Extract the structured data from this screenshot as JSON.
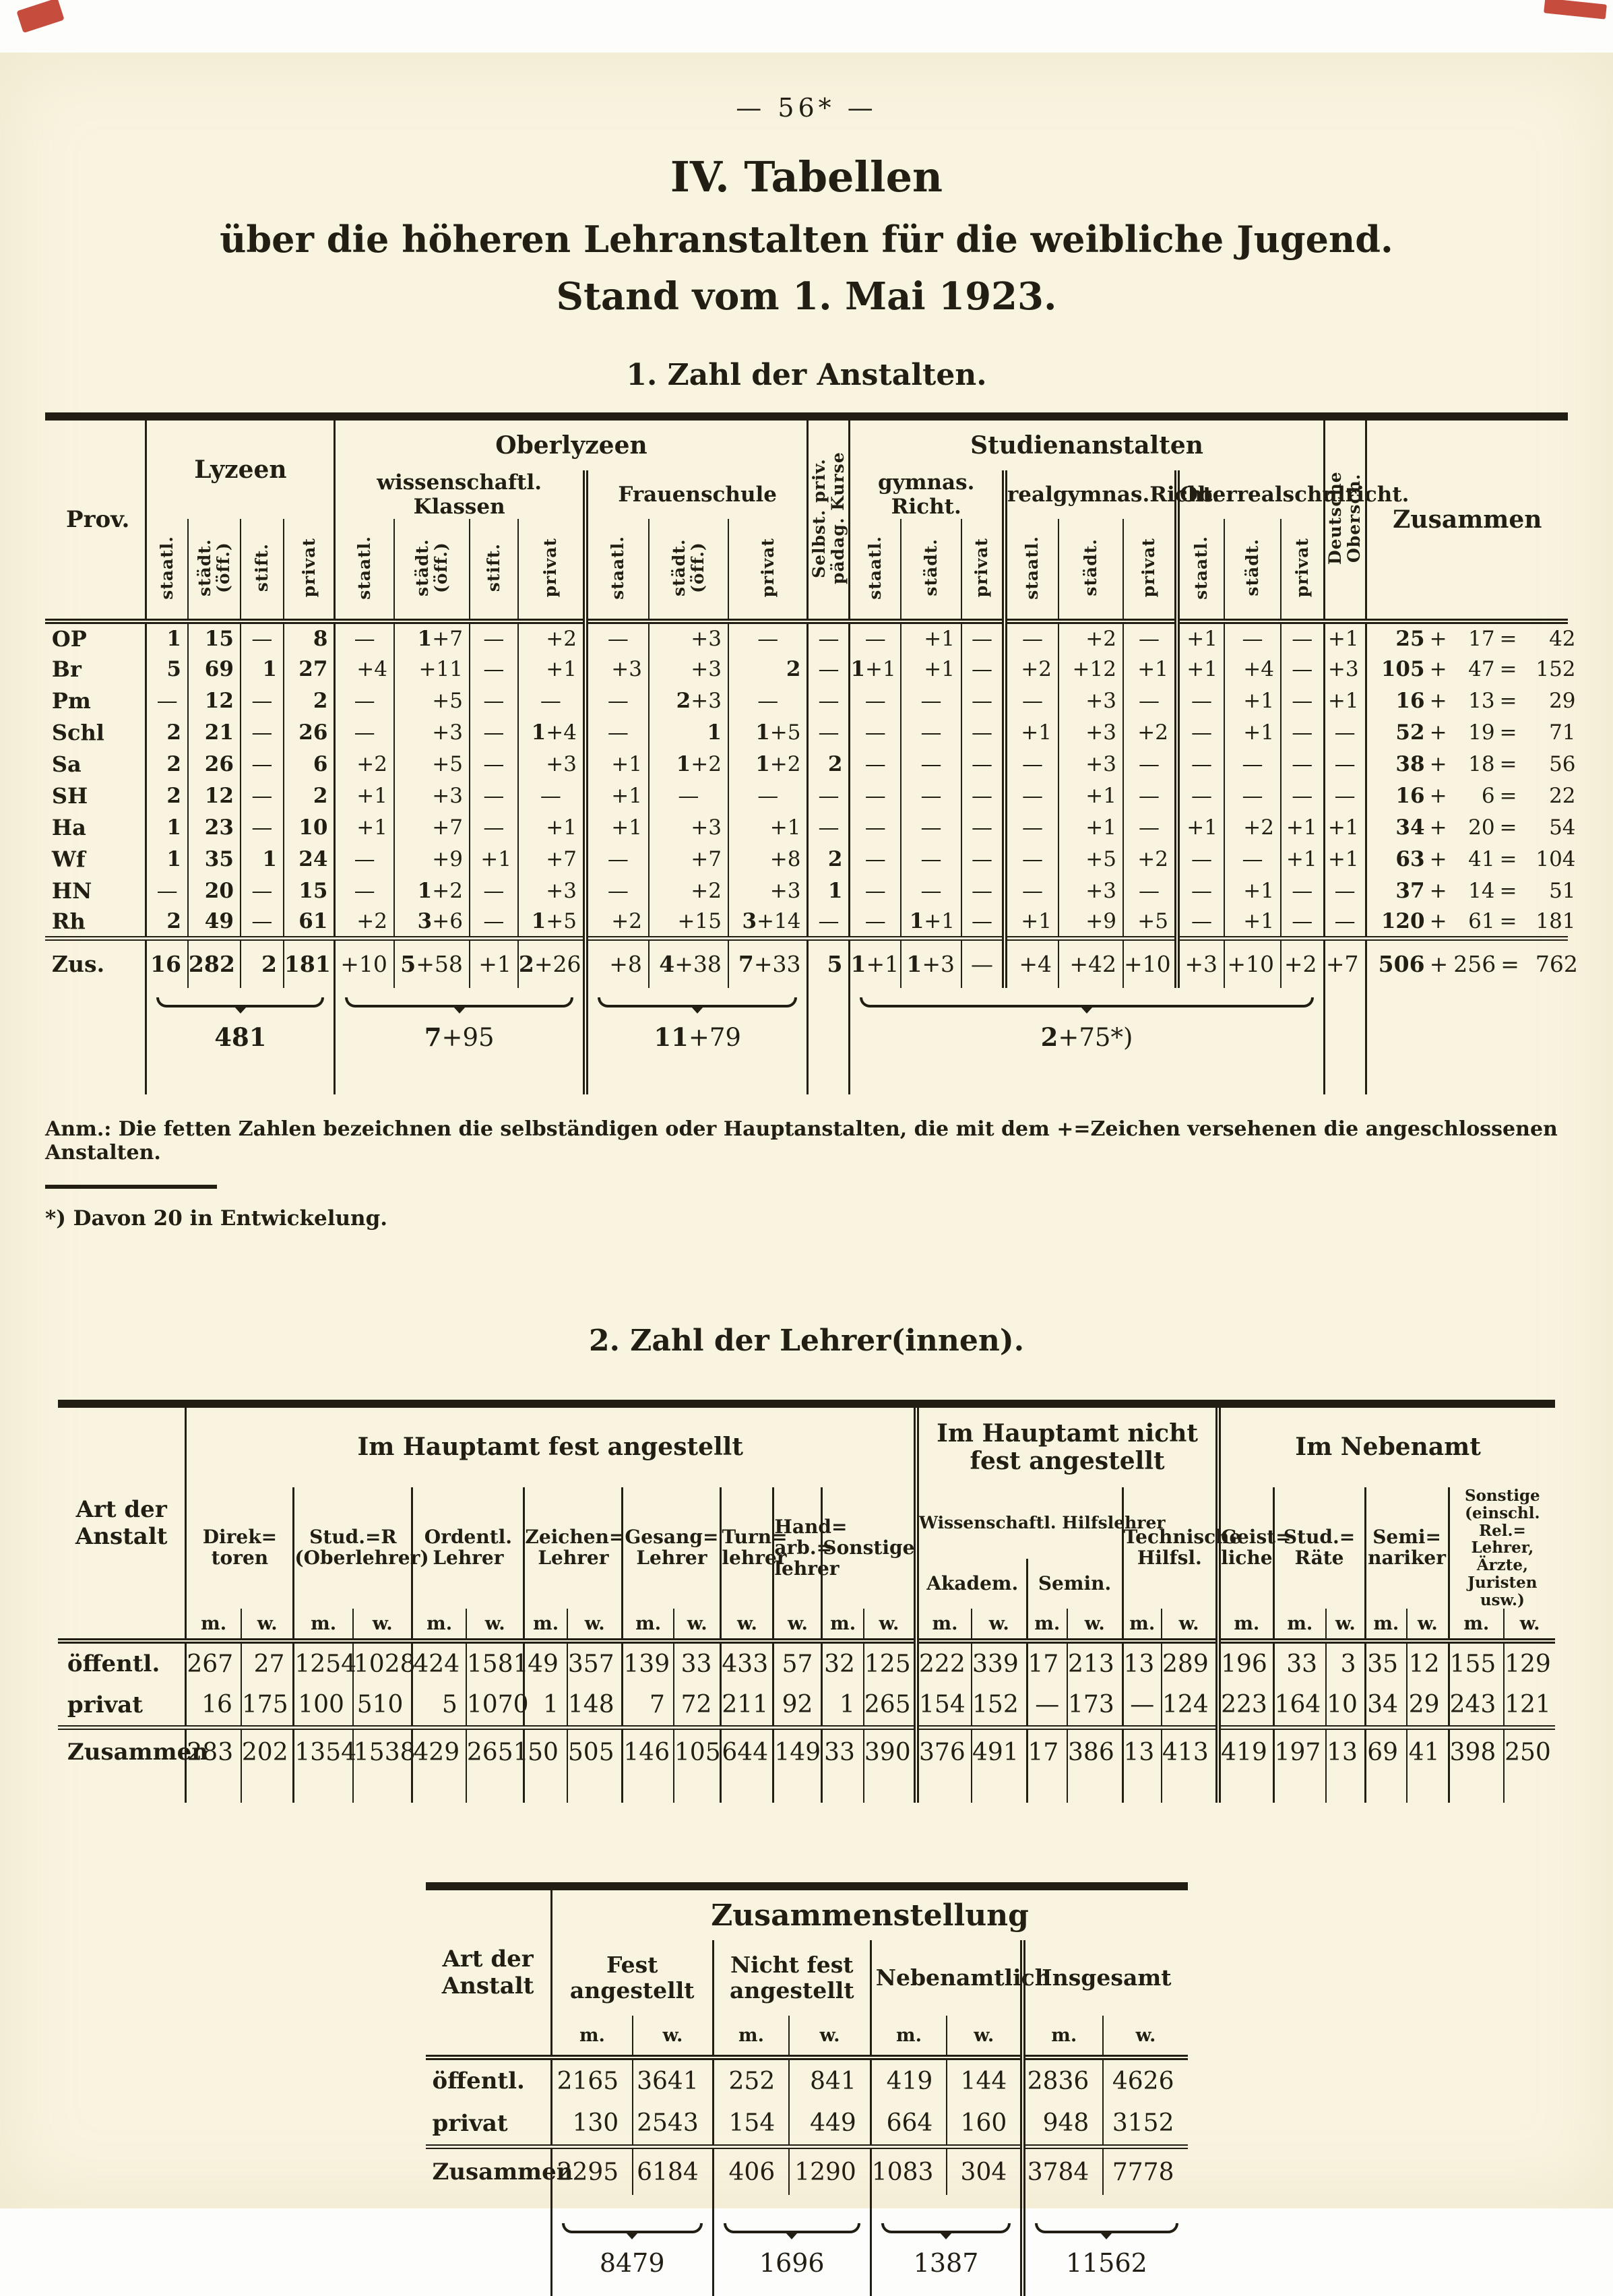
{
  "page": {
    "page_number": "—  56*  —",
    "title": "IV. Tabellen",
    "subtitle": "über die höheren Lehranstalten für die weibliche Jugend.",
    "date_line": "Stand vom 1. Mai 1923."
  },
  "table1": {
    "section_title": "1. Zahl der Anstalten.",
    "header": {
      "prov": "Prov.",
      "lyzeen": "Lyzeen",
      "oberlyzeen": "Oberlyzeen",
      "wiss_klassen": "wissenschaftl. Klassen",
      "frauenschule": "Frauenschule",
      "kurse": "Selbst. priv. pädag. Kurse",
      "studienanstalten": "Studienanstalten",
      "gym": "gymnas. Richt.",
      "realgym": "realgymnas.Richt.",
      "oberreal": "Oberrealschulricht.",
      "deutsche_obersch": "Deutsche Obersch.",
      "zusammen": "Zusammen",
      "cols": [
        "staatl.",
        "städt. (öff.)",
        "stift.",
        "privat",
        "staatl.",
        "städt. (öff.)",
        "stift.",
        "privat",
        "staatl.",
        "städt. (öff.)",
        "privat",
        "staatl.",
        "städt.",
        "privat",
        "staatl.",
        "städt.",
        "privat",
        "staatl.",
        "städt.",
        "privat"
      ]
    },
    "rows": [
      {
        "prov": "OP",
        "cells": [
          "1",
          "15",
          "—",
          "8",
          "—",
          "1+7",
          "—",
          "+2",
          "—",
          "+3",
          "—",
          "—",
          "—",
          "+1",
          "—",
          "—",
          "+2",
          "—",
          "+1",
          "—",
          "—",
          "+1"
        ],
        "zus": [
          "25",
          "17",
          "42"
        ]
      },
      {
        "prov": "Br",
        "cells": [
          "5",
          "69",
          "1",
          "27",
          "+4",
          "+11",
          "—",
          "+1",
          "+3",
          "+3",
          "2",
          "—",
          "1+1",
          "+1",
          "—",
          "+2",
          "+12",
          "+1",
          "+1",
          "+4",
          "—",
          "+3"
        ],
        "zus": [
          "105",
          "47",
          "152"
        ]
      },
      {
        "prov": "Pm",
        "cells": [
          "—",
          "12",
          "—",
          "2",
          "—",
          "+5",
          "—",
          "—",
          "—",
          "2+3",
          "—",
          "—",
          "—",
          "—",
          "—",
          "—",
          "+3",
          "—",
          "—",
          "+1",
          "—",
          "+1"
        ],
        "zus": [
          "16",
          "13",
          "29"
        ]
      },
      {
        "prov": "Schl",
        "cells": [
          "2",
          "21",
          "—",
          "26",
          "—",
          "+3",
          "—",
          "1+4",
          "—",
          "1",
          "1+5",
          "—",
          "—",
          "—",
          "—",
          "+1",
          "+3",
          "+2",
          "—",
          "+1",
          "—",
          "—"
        ],
        "zus": [
          "52",
          "19",
          "71"
        ]
      },
      {
        "prov": "Sa",
        "cells": [
          "2",
          "26",
          "—",
          "6",
          "+2",
          "+5",
          "—",
          "+3",
          "+1",
          "1+2",
          "1+2",
          "2",
          "—",
          "—",
          "—",
          "—",
          "+3",
          "—",
          "—",
          "—",
          "—",
          "—"
        ],
        "zus": [
          "38",
          "18",
          "56"
        ]
      },
      {
        "prov": "SH",
        "cells": [
          "2",
          "12",
          "—",
          "2",
          "+1",
          "+3",
          "—",
          "—",
          "+1",
          "—",
          "—",
          "—",
          "—",
          "—",
          "—",
          "—",
          "+1",
          "—",
          "—",
          "—",
          "—",
          "—"
        ],
        "zus": [
          "16",
          "6",
          "22"
        ]
      },
      {
        "prov": "Ha",
        "cells": [
          "1",
          "23",
          "—",
          "10",
          "+1",
          "+7",
          "—",
          "+1",
          "+1",
          "+3",
          "+1",
          "—",
          "—",
          "—",
          "—",
          "—",
          "+1",
          "—",
          "+1",
          "+2",
          "+1",
          "+1"
        ],
        "zus": [
          "34",
          "20",
          "54"
        ]
      },
      {
        "prov": "Wf",
        "cells": [
          "1",
          "35",
          "1",
          "24",
          "—",
          "+9",
          "+1",
          "+7",
          "—",
          "+7",
          "+8",
          "2",
          "—",
          "—",
          "—",
          "—",
          "+5",
          "+2",
          "—",
          "—",
          "+1",
          "+1"
        ],
        "zus": [
          "63",
          "41",
          "104"
        ]
      },
      {
        "prov": "HN",
        "cells": [
          "—",
          "20",
          "—",
          "15",
          "—",
          "1+2",
          "—",
          "+3",
          "—",
          "+2",
          "+3",
          "1",
          "—",
          "—",
          "—",
          "—",
          "+3",
          "—",
          "—",
          "+1",
          "—",
          "—"
        ],
        "zus": [
          "37",
          "14",
          "51"
        ]
      },
      {
        "prov": "Rh",
        "cells": [
          "2",
          "49",
          "—",
          "61",
          "+2",
          "3+6",
          "—",
          "1+5",
          "+2",
          "+15",
          "3+14",
          "—",
          "—",
          "1+1",
          "—",
          "+1",
          "+9",
          "+5",
          "—",
          "+1",
          "—",
          "—"
        ],
        "zus": [
          "120",
          "61",
          "181"
        ]
      }
    ],
    "total": {
      "prov": "Zus.",
      "cells": [
        "16",
        "282",
        "2",
        "181",
        "+10",
        "5+58",
        "+1",
        "2+26",
        "+8",
        "4+38",
        "7+33",
        "5",
        "1+1",
        "1+3",
        "—",
        "+4",
        "+42",
        "+10",
        "+3",
        "+10",
        "+2",
        "+7"
      ],
      "zus": [
        "506",
        "256",
        "762"
      ]
    },
    "braces": {
      "lyzeen": "481",
      "wiss": "7+95",
      "frauenschule": "11+79",
      "studien": "2+75*)"
    },
    "note": "Anm.: Die fetten Zahlen bezeichnen die selbständigen oder Hauptanstalten, die mit dem +=Zeichen versehenen die angeschlossenen Anstalten.",
    "footnote": "*) Davon 20 in Entwickelung."
  },
  "table2": {
    "section_title": "2. Zahl der Lehrer(innen).",
    "header": {
      "art": "Art der Anstalt",
      "hauptamt_fest": "Im Hauptamt fest angestellt",
      "hauptamt_nicht": "Im Hauptamt nicht fest angestellt",
      "nebenamt": "Im Nebenamt",
      "direktoren": "Direk= toren",
      "stud_r": "Stud.=R (Oberlehrer)",
      "ordentl": "Ordentl. Lehrer",
      "zeichen": "Zeichen= Lehrer",
      "gesang": "Gesang= Lehrer",
      "turn": "Turn= lehrer",
      "handarb": "Hand= arb.= lehrer",
      "sonstige": "Sonstige",
      "wiss_hilfslehrer": "Wissenschaftl. Hilfslehrer",
      "akadem": "Akadem.",
      "semin": "Semin.",
      "technische": "Technische Hilfsl.",
      "geistliche": "Geist= liche",
      "stud_raete": "Stud.= Räte",
      "seminariker": "Semi= nariker",
      "sonstige2": "Sonstige (einschl. Rel.= Lehrer, Ärzte, Juristen usw.)",
      "mw": [
        "m.",
        "w.",
        "m.",
        "w.",
        "m.",
        "w.",
        "m.",
        "w.",
        "m.",
        "w.",
        "w.",
        "w.",
        "m.",
        "w.",
        "m.",
        "w.",
        "m.",
        "w.",
        "m.",
        "w.",
        "m.",
        "m.",
        "w.",
        "m.",
        "w.",
        "m.",
        "w."
      ]
    },
    "rows": [
      {
        "label": "öffentl.",
        "values": [
          "267",
          "27",
          "1254",
          "1028",
          "424",
          "1581",
          "49",
          "357",
          "139",
          "33",
          "433",
          "57",
          "32",
          "125",
          "222",
          "339",
          "17",
          "213",
          "13",
          "289",
          "196",
          "33",
          "3",
          "35",
          "12",
          "155",
          "129"
        ]
      },
      {
        "label": "privat",
        "values": [
          "16",
          "175",
          "100",
          "510",
          "5",
          "1070",
          "1",
          "148",
          "7",
          "72",
          "211",
          "92",
          "1",
          "265",
          "154",
          "152",
          "—",
          "173",
          "—",
          "124",
          "223",
          "164",
          "10",
          "34",
          "29",
          "243",
          "121"
        ]
      }
    ],
    "total": {
      "label": "Zusammen",
      "values": [
        "283",
        "202",
        "1354",
        "1538",
        "429",
        "2651",
        "50",
        "505",
        "146",
        "105",
        "644",
        "149",
        "33",
        "390",
        "376",
        "491",
        "17",
        "386",
        "13",
        "413",
        "419",
        "197",
        "13",
        "69",
        "41",
        "398",
        "250"
      ]
    }
  },
  "table3": {
    "title": "Zusammenstellung",
    "header": {
      "art": "Art der Anstalt",
      "fest": "Fest angestellt",
      "nicht": "Nicht fest angestellt",
      "neben": "Nebenamtlich",
      "insgesamt": "Insgesamt",
      "mw": [
        "m.",
        "w.",
        "m.",
        "w.",
        "m.",
        "w.",
        "m.",
        "w."
      ]
    },
    "rows": [
      {
        "label": "öffentl.",
        "values": [
          "2165",
          "3641",
          "252",
          "841",
          "419",
          "144",
          "2836",
          "4626"
        ]
      },
      {
        "label": "privat",
        "values": [
          "130",
          "2543",
          "154",
          "449",
          "664",
          "160",
          "948",
          "3152"
        ]
      }
    ],
    "total": {
      "label": "Zusammen",
      "values": [
        "2295",
        "6184",
        "406",
        "1290",
        "1083",
        "304",
        "3784",
        "7778"
      ]
    },
    "braces": [
      "8479",
      "1696",
      "1387",
      "11562"
    ]
  }
}
